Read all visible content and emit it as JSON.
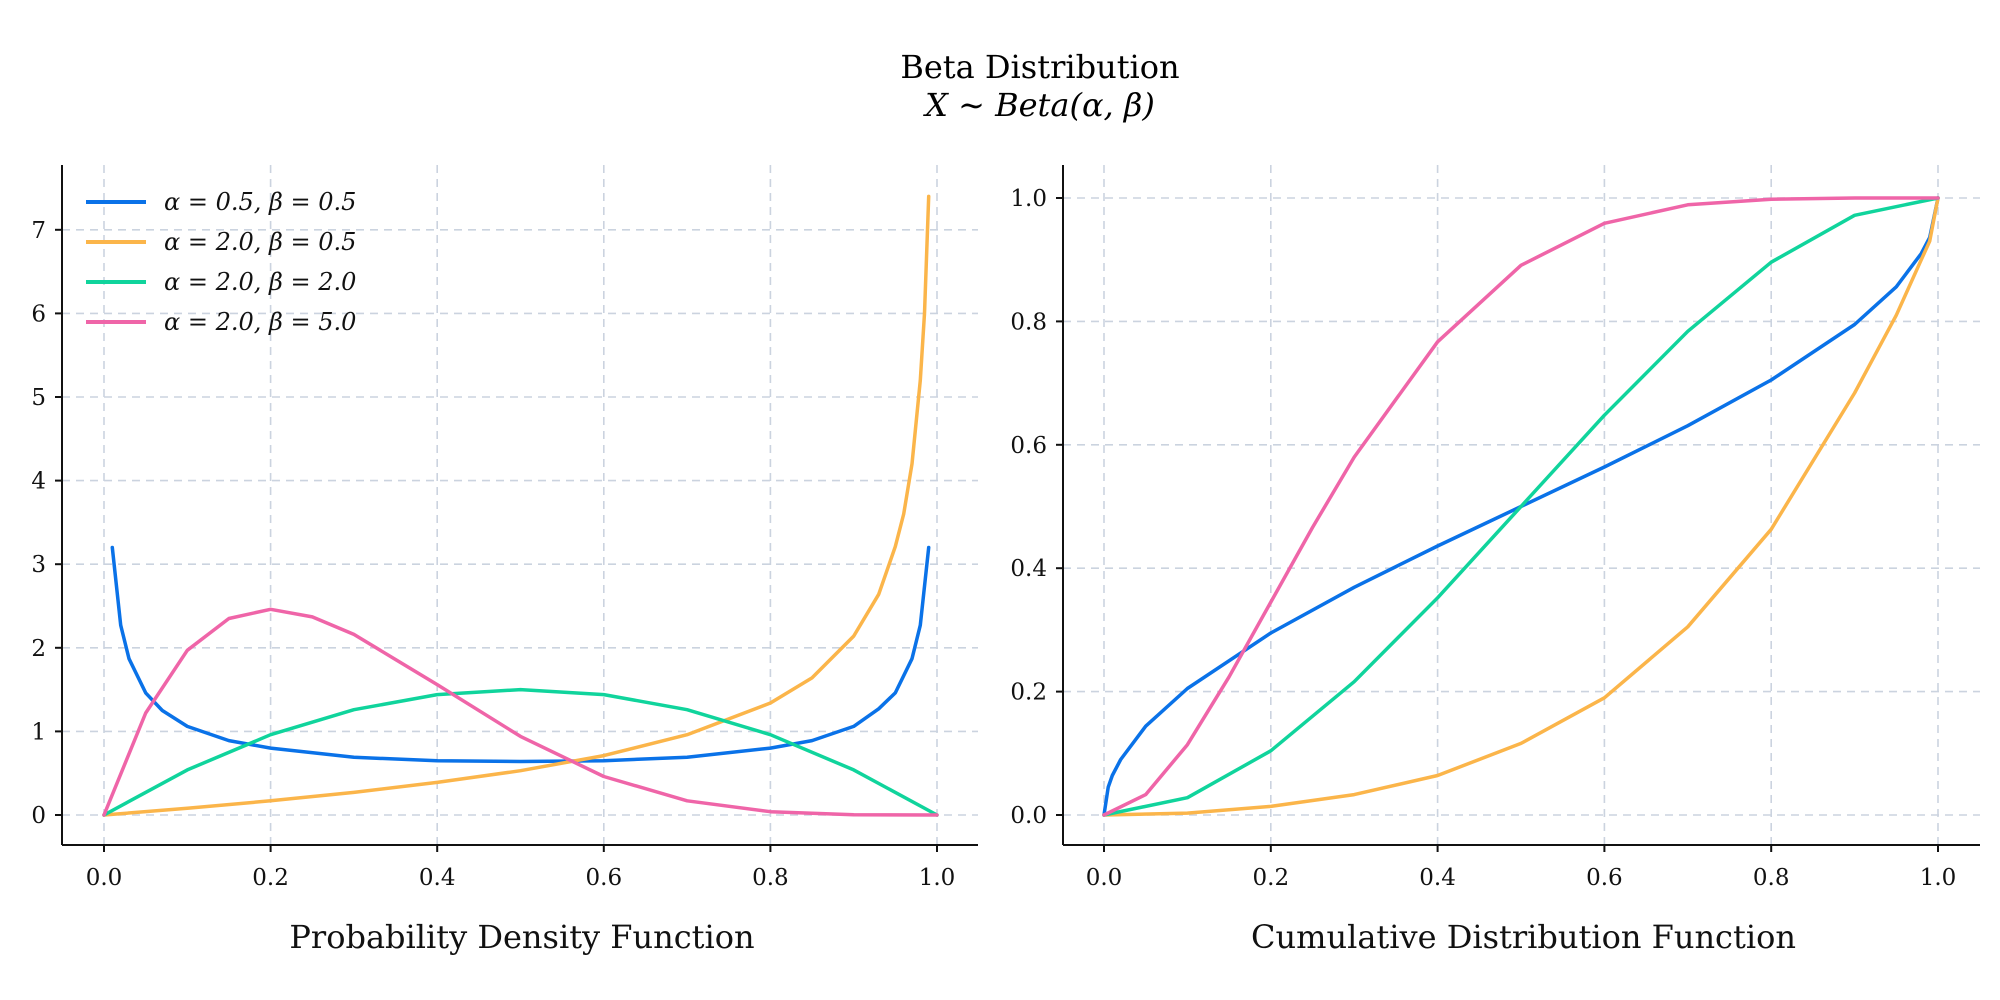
{
  "figure": {
    "title": "Beta Distribution",
    "subtitle": "X ∼ Beta(α, β)"
  },
  "colors": {
    "blue": "#0a72e8",
    "orange": "#fbb54a",
    "green": "#10d49c",
    "pink": "#ef65a8",
    "grid": "#cbd3df"
  },
  "chart_data": [
    {
      "type": "line",
      "xlabel": "Probability Density Function",
      "ylabel": "",
      "xlim": [
        0,
        1
      ],
      "ylim": [
        0,
        7.6
      ],
      "xticks": [
        "0.0",
        "0.2",
        "0.4",
        "0.6",
        "0.8",
        "1.0"
      ],
      "yticks": [
        "0",
        "1",
        "2",
        "3",
        "4",
        "5",
        "6",
        "7"
      ],
      "grid": true,
      "legend_position": "top-left",
      "series": [
        {
          "name": "α = 0.5, β = 0.5",
          "color": "#0a72e8",
          "x": [
            0.01,
            0.02,
            0.03,
            0.05,
            0.07,
            0.1,
            0.15,
            0.2,
            0.3,
            0.4,
            0.5,
            0.6,
            0.7,
            0.8,
            0.85,
            0.9,
            0.93,
            0.95,
            0.97,
            0.98,
            0.99
          ],
          "y": [
            3.2,
            2.27,
            1.87,
            1.46,
            1.25,
            1.06,
            0.89,
            0.8,
            0.69,
            0.65,
            0.64,
            0.65,
            0.69,
            0.8,
            0.89,
            1.06,
            1.27,
            1.46,
            1.87,
            2.27,
            3.2
          ]
        },
        {
          "name": "α = 2.0, β = 0.5",
          "color": "#fbb54a",
          "x": [
            0,
            0.1,
            0.2,
            0.3,
            0.4,
            0.5,
            0.6,
            0.7,
            0.8,
            0.85,
            0.9,
            0.93,
            0.95,
            0.96,
            0.97,
            0.98,
            0.985,
            0.99
          ],
          "y": [
            0,
            0.08,
            0.17,
            0.27,
            0.39,
            0.53,
            0.71,
            0.96,
            1.34,
            1.64,
            2.14,
            2.64,
            3.21,
            3.6,
            4.2,
            5.2,
            6.0,
            7.4
          ]
        },
        {
          "name": "α = 2.0, β = 2.0",
          "color": "#10d49c",
          "x": [
            0,
            0.1,
            0.2,
            0.3,
            0.4,
            0.5,
            0.6,
            0.7,
            0.8,
            0.9,
            1.0
          ],
          "y": [
            0,
            0.54,
            0.96,
            1.26,
            1.44,
            1.5,
            1.44,
            1.26,
            0.96,
            0.54,
            0
          ]
        },
        {
          "name": "α = 2.0, β = 5.0",
          "color": "#ef65a8",
          "x": [
            0,
            0.05,
            0.1,
            0.15,
            0.2,
            0.25,
            0.3,
            0.35,
            0.4,
            0.5,
            0.6,
            0.7,
            0.8,
            0.9,
            1.0
          ],
          "y": [
            0,
            1.22,
            1.97,
            2.35,
            2.46,
            2.37,
            2.16,
            1.86,
            1.56,
            0.94,
            0.46,
            0.17,
            0.04,
            0.003,
            0
          ]
        }
      ]
    },
    {
      "type": "line",
      "xlabel": "Cumulative Distribution Function",
      "ylabel": "",
      "xlim": [
        0,
        1
      ],
      "ylim": [
        0,
        1.05
      ],
      "xticks": [
        "0.0",
        "0.2",
        "0.4",
        "0.6",
        "0.8",
        "1.0"
      ],
      "yticks": [
        "0.0",
        "0.2",
        "0.4",
        "0.6",
        "0.8",
        "1.0"
      ],
      "grid": true,
      "series": [
        {
          "name": "α = 0.5, β = 0.5",
          "color": "#0a72e8",
          "x": [
            0,
            0.005,
            0.01,
            0.02,
            0.05,
            0.1,
            0.2,
            0.3,
            0.4,
            0.5,
            0.6,
            0.7,
            0.8,
            0.9,
            0.95,
            0.98,
            0.99,
            1.0
          ],
          "y": [
            0,
            0.045,
            0.064,
            0.09,
            0.144,
            0.205,
            0.295,
            0.369,
            0.436,
            0.5,
            0.564,
            0.631,
            0.705,
            0.795,
            0.856,
            0.91,
            0.936,
            1.0
          ]
        },
        {
          "name": "α = 2.0, β = 0.5",
          "color": "#fbb54a",
          "x": [
            0,
            0.1,
            0.2,
            0.3,
            0.4,
            0.5,
            0.6,
            0.7,
            0.8,
            0.9,
            0.95,
            0.98,
            0.99,
            1.0
          ],
          "y": [
            0,
            0.003,
            0.014,
            0.033,
            0.064,
            0.116,
            0.19,
            0.305,
            0.463,
            0.684,
            0.81,
            0.9,
            0.93,
            1.0
          ]
        },
        {
          "name": "α = 2.0, β = 2.0",
          "color": "#10d49c",
          "x": [
            0,
            0.1,
            0.2,
            0.3,
            0.4,
            0.5,
            0.6,
            0.7,
            0.8,
            0.9,
            1.0
          ],
          "y": [
            0,
            0.028,
            0.104,
            0.216,
            0.352,
            0.5,
            0.648,
            0.784,
            0.896,
            0.972,
            1.0
          ]
        },
        {
          "name": "α = 2.0, β = 5.0",
          "color": "#ef65a8",
          "x": [
            0,
            0.05,
            0.1,
            0.15,
            0.2,
            0.25,
            0.3,
            0.4,
            0.5,
            0.6,
            0.7,
            0.8,
            0.9,
            1.0
          ],
          "y": [
            0,
            0.033,
            0.114,
            0.224,
            0.345,
            0.466,
            0.58,
            0.767,
            0.891,
            0.959,
            0.989,
            0.998,
            1.0,
            1.0
          ]
        }
      ]
    }
  ]
}
